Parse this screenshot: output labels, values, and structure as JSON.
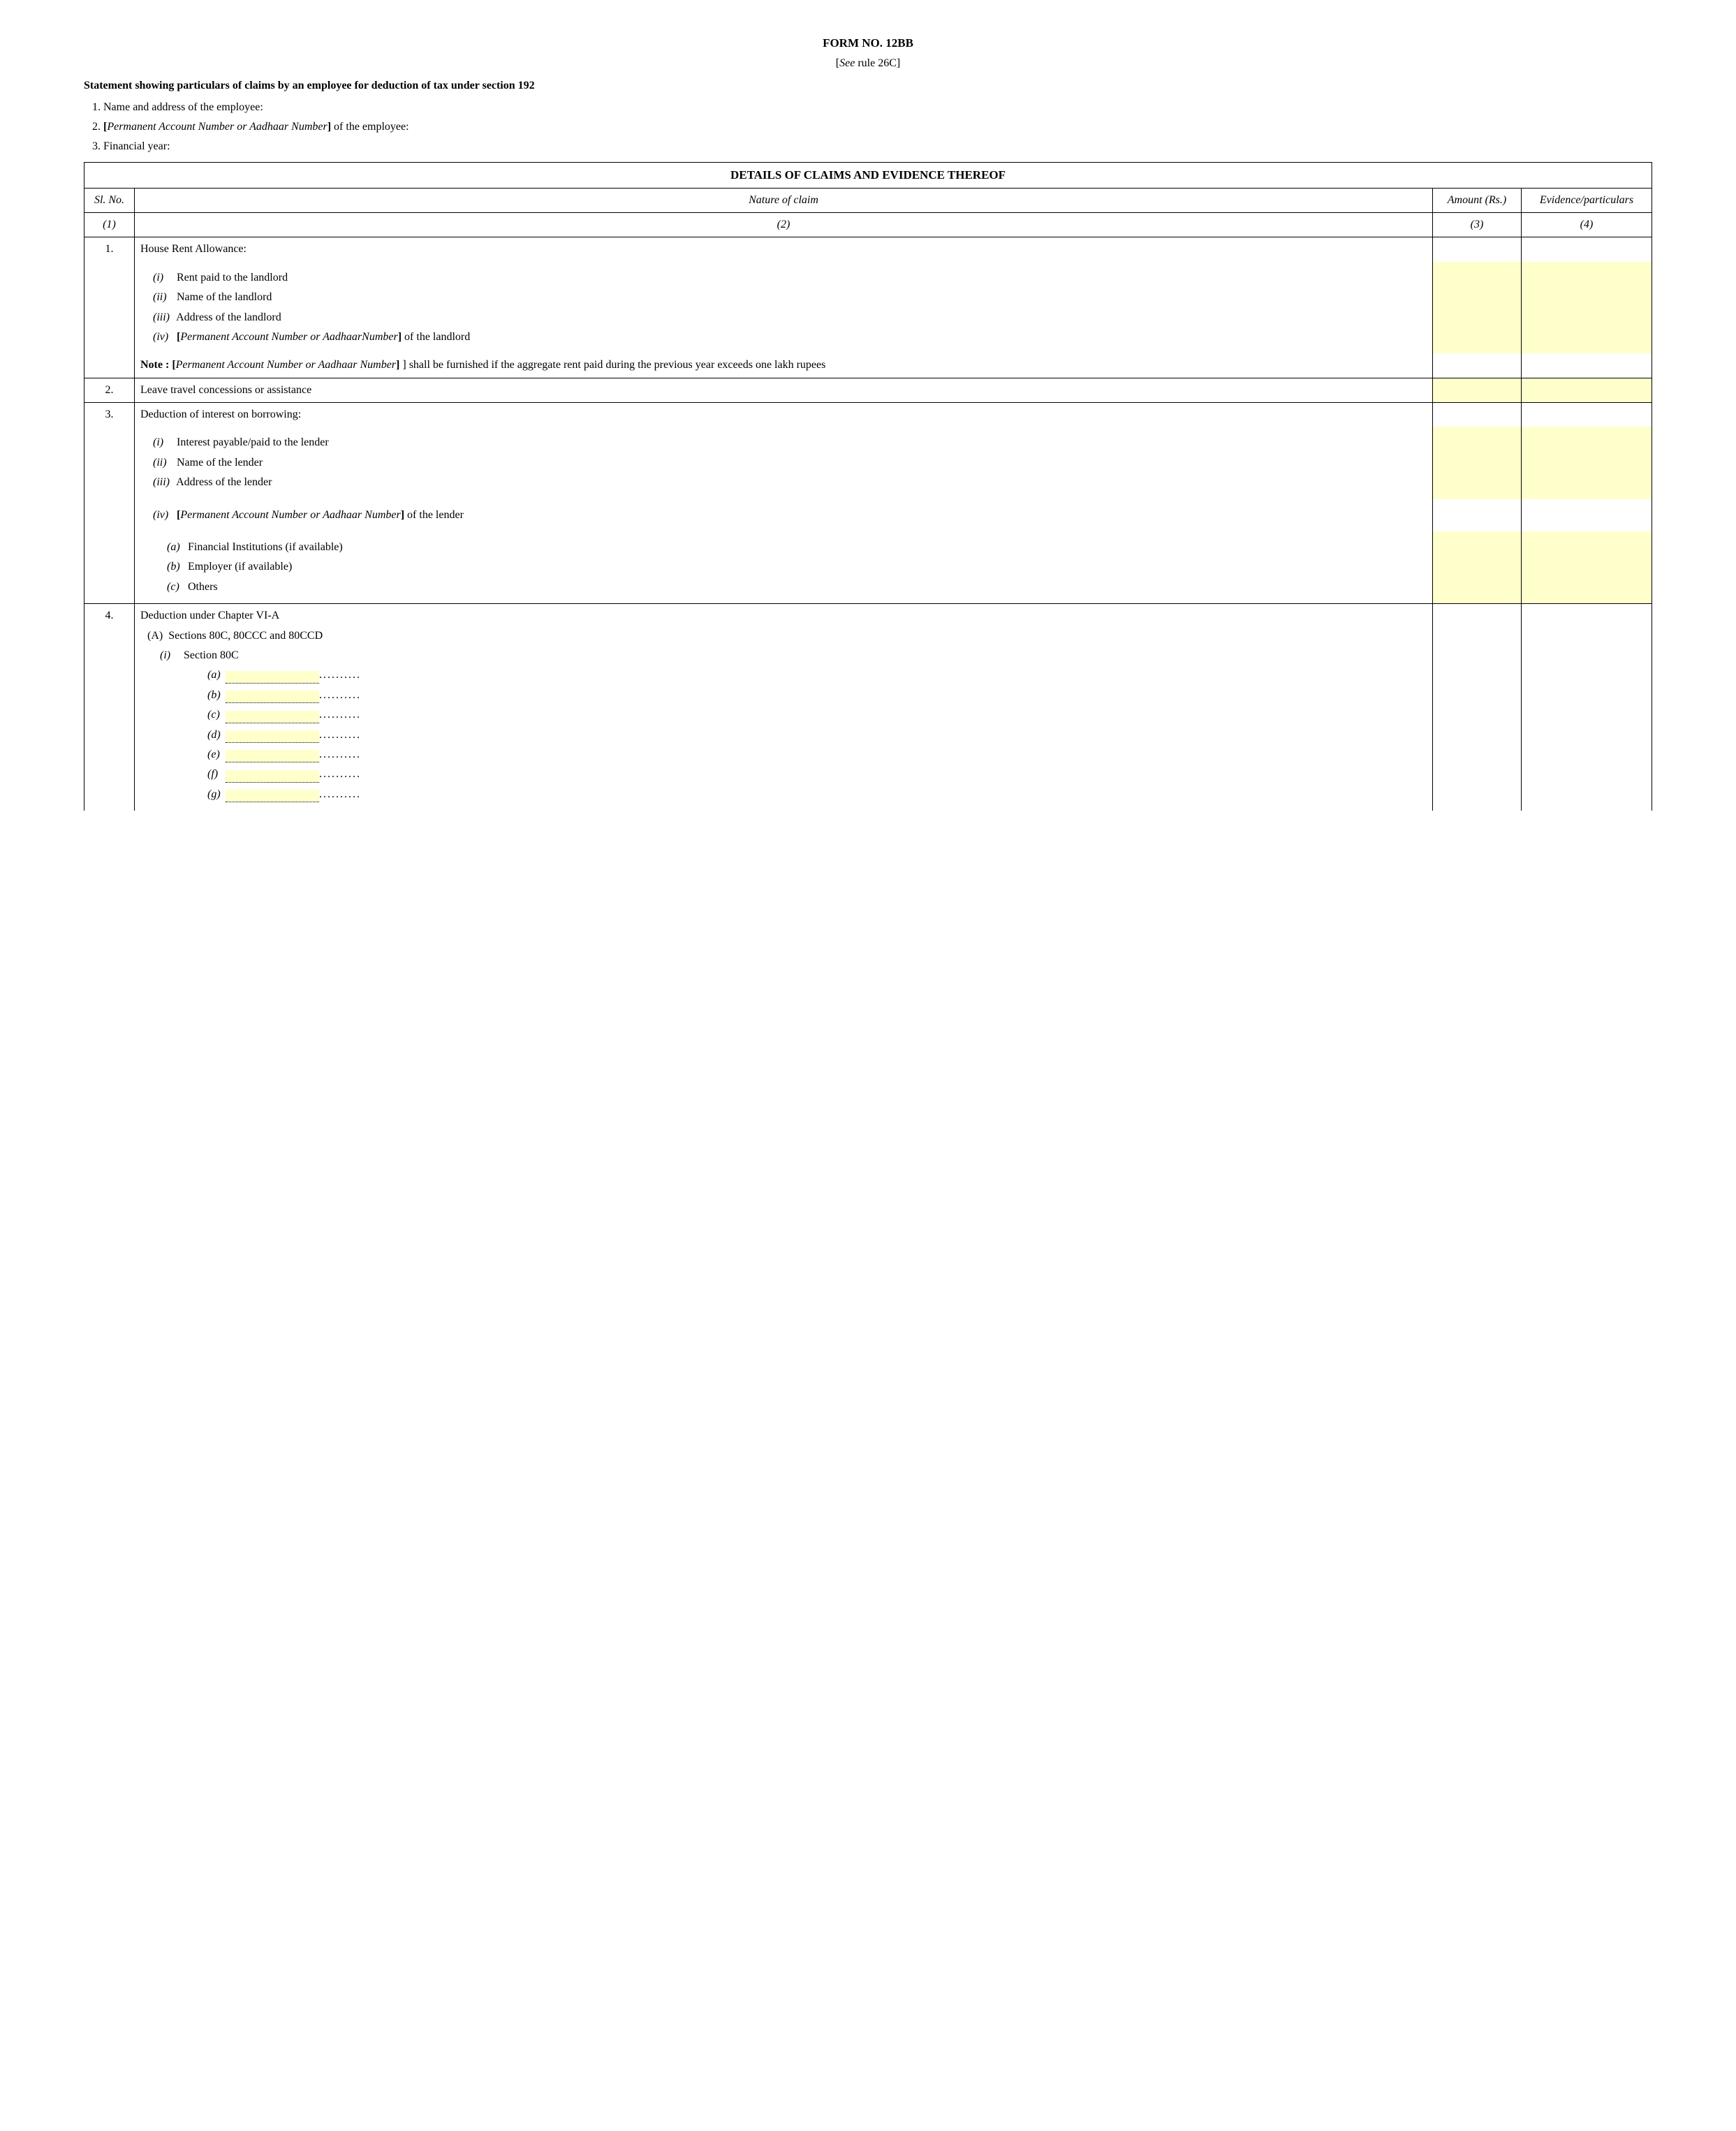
{
  "title": "FORM NO. 12BB",
  "rule": "[See rule 26C]",
  "statement": "Statement showing particulars of claims by an employee for deduction of tax under section 192",
  "top_items": [
    "Name and address of the employee:",
    "[Permanent Account Number or Aadhaar Number] of the employee:",
    "Financial year:"
  ],
  "top_item2_prefix": "[",
  "top_item2_italic": "Permanent Account Number or Aadhaar Number",
  "top_item2_suffix": "] of the employee:",
  "table_title": "DETAILS OF CLAIMS AND EVIDENCE THEREOF",
  "headers": {
    "sl": "Sl. No.",
    "nature": "Nature of claim",
    "amount": "Amount (Rs.)",
    "evidence": "Evidence/particulars",
    "c1": "(1)",
    "c2": "(2)",
    "c3": "(3)",
    "c4": "(4)"
  },
  "row1": {
    "no": "1.",
    "title": "House Rent Allowance:",
    "items": {
      "i": "Rent paid to the landlord",
      "ii": "Name of the landlord",
      "iii": "Address of the landlord",
      "iv_pre": "[",
      "iv_it": "Permanent Account Number or AadhaarNumber",
      "iv_suf": "] of the landlord"
    },
    "note_label": "Note :  [",
    "note_it": "Permanent Account Number or Aadhaar Number",
    "note_suf": "] shall be furnished if the aggregate rent paid during the previous year exceeds one lakh rupees"
  },
  "row2": {
    "no": "2.",
    "title": "Leave travel concessions or assistance"
  },
  "row3": {
    "no": "3.",
    "title": "Deduction of interest on borrowing:",
    "items": {
      "i": "Interest payable/paid to the lender",
      "ii": "Name of the lender",
      "iii": "Address of the lender",
      "iv_pre": "[",
      "iv_it": "Permanent Account Number or Aadhaar Number",
      "iv_suf": "] of the lender"
    },
    "subs": {
      "a": "Financial Institutions (if available)",
      "b": "Employer (if available)",
      "c": "Others"
    }
  },
  "row4": {
    "no": "4.",
    "title": "Deduction under Chapter VI-A",
    "A": "Sections 80C, 80CCC and 80CCD",
    "i": "Section 80C",
    "letters": [
      "a",
      "b",
      "c",
      "d",
      "e",
      "f",
      "g"
    ]
  },
  "colors": {
    "highlight": "#ffffcc"
  },
  "dots": "..................................."
}
